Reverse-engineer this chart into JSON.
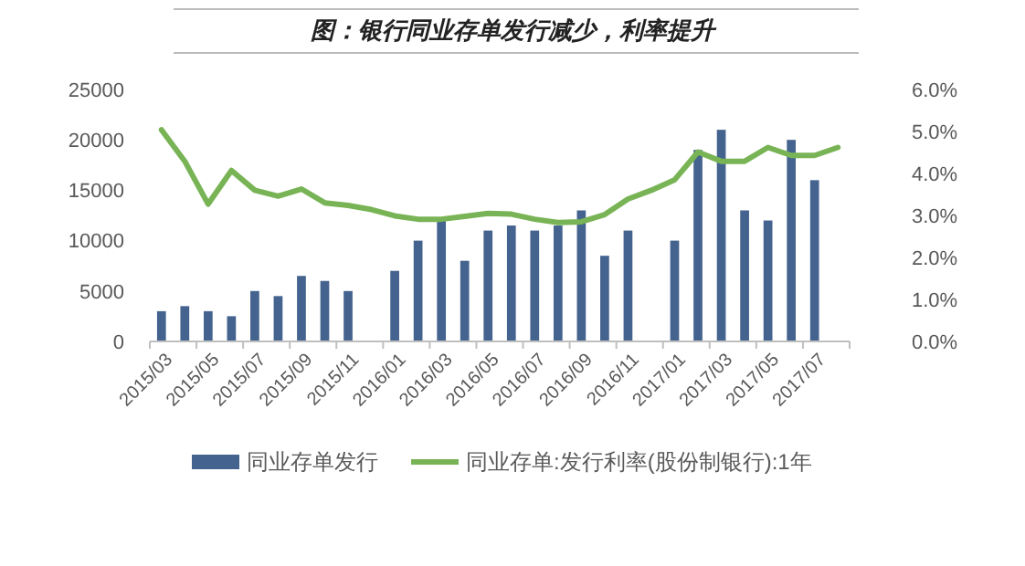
{
  "chart_data": {
    "type": "bar",
    "title": "图：银行同业存单发行减少，利率提升",
    "categories": [
      "2015/03",
      null,
      "2015/05",
      null,
      "2015/07",
      null,
      "2015/09",
      null,
      "2015/11",
      null,
      "2016/01",
      null,
      "2016/03",
      null,
      "2016/05",
      null,
      "2016/07",
      null,
      "2016/09",
      null,
      "2016/11",
      null,
      "2017/01",
      null,
      "2017/03",
      null,
      "2017/05",
      null,
      "2017/07",
      null
    ],
    "series": [
      {
        "name": "同业存单发行",
        "color": "#44638f",
        "values": [
          3000,
          3500,
          3000,
          2500,
          5000,
          4500,
          6500,
          6000,
          5000,
          null,
          7000,
          10000,
          12000,
          8000,
          11000,
          11500,
          11000,
          11500,
          13000,
          8500,
          11000,
          null,
          10000,
          19000,
          21000,
          13000,
          12000,
          20000,
          16000,
          null
        ]
      },
      {
        "name": "同业存单:发行利率(股份制银行):1年",
        "type": "line",
        "axis": "y2",
        "color": "#78b455",
        "values": [
          5.04,
          4.29,
          3.27,
          4.07,
          3.6,
          3.46,
          3.63,
          3.3,
          3.24,
          3.14,
          2.99,
          2.91,
          2.91,
          2.98,
          3.05,
          3.03,
          2.91,
          2.83,
          2.85,
          3.02,
          3.39,
          3.6,
          3.85,
          4.51,
          4.29,
          4.29,
          4.62,
          4.43,
          4.43,
          4.62
        ]
      }
    ],
    "ylim": [
      0,
      25000
    ],
    "yticks": [
      0,
      5000,
      10000,
      15000,
      20000,
      25000
    ],
    "y2lim": [
      0,
      6
    ],
    "y2ticks": [
      {
        "value": 0,
        "label": "0.0%"
      },
      {
        "value": 1,
        "label": "1.0%"
      },
      {
        "value": 2,
        "label": "2.0%"
      },
      {
        "value": 3,
        "label": "3.0%"
      },
      {
        "value": 4,
        "label": "4.0%"
      },
      {
        "value": 5,
        "label": "5.0%"
      },
      {
        "value": 6,
        "label": "6.0%"
      }
    ],
    "grid": false,
    "legend": "bottom",
    "marker": "none",
    "line_style": "solid"
  }
}
